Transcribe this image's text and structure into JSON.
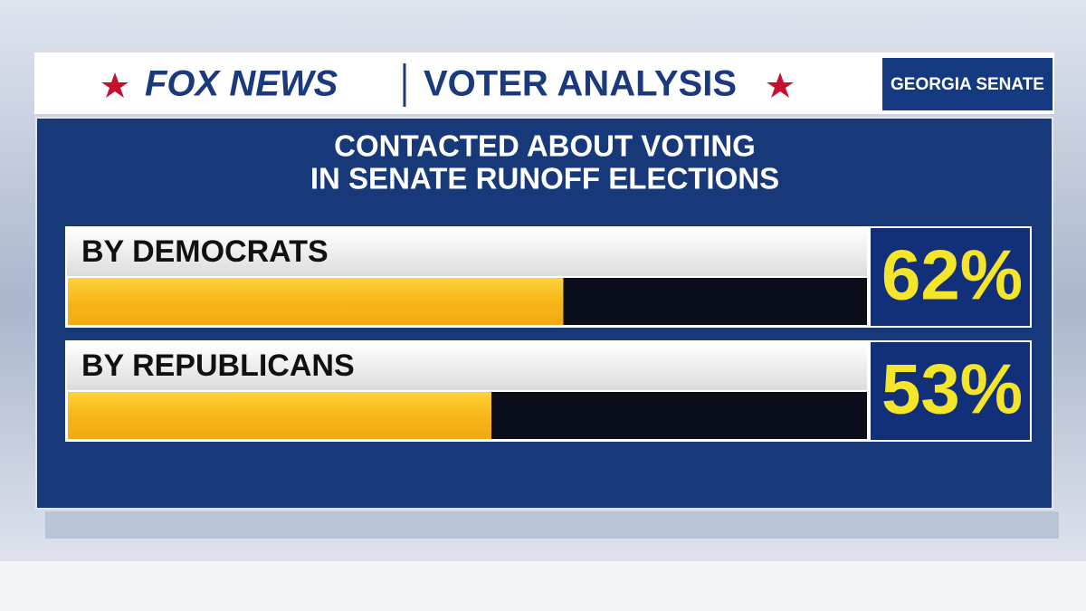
{
  "header": {
    "brand": "FOX NEWS",
    "section": "VOTER ANALYSIS",
    "tag": "GEORGIA SENATE"
  },
  "chart_data": {
    "type": "bar",
    "orientation": "horizontal",
    "title": [
      "CONTACTED ABOUT VOTING",
      "IN SENATE RUNOFF ELECTIONS"
    ],
    "categories": [
      "BY DEMOCRATS",
      "BY REPUBLICANS"
    ],
    "values": [
      62,
      53
    ],
    "value_labels": [
      "62%",
      "53%"
    ],
    "color": "#f7b718",
    "xlim": [
      0,
      100
    ]
  }
}
